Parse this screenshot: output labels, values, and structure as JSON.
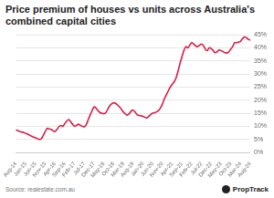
{
  "chart_data": {
    "type": "line",
    "title": "Price premium of houses vs units across Australia's combined capital cities",
    "source": "Source: realestate.com.au",
    "logo": "PropTrack",
    "color": "#d81e47",
    "grid": true,
    "categories": [
      "Aug-14",
      null,
      null,
      null,
      null,
      "Jan-15",
      null,
      null,
      null,
      null,
      "Jun-15",
      null,
      null,
      null,
      null,
      "Nov-15",
      null,
      null,
      null,
      null,
      "Apr-16",
      null,
      null,
      null,
      null,
      "Sep-16",
      null,
      null,
      null,
      null,
      "Feb-17",
      null,
      null,
      null,
      null,
      "Jul-17",
      null,
      null,
      null,
      null,
      "Dec-17",
      null,
      null,
      null,
      null,
      "May-18",
      null,
      null,
      null,
      null,
      "Oct-18",
      null,
      null,
      null,
      null,
      "Mar-19",
      null,
      null,
      null,
      null,
      "Aug-19",
      null,
      null,
      null,
      null,
      "Jan-20",
      null,
      null,
      null,
      null,
      "Jun-20",
      null,
      null,
      null,
      null,
      "Nov-20",
      null,
      null,
      null,
      null,
      "Apr-21",
      null,
      null,
      null,
      null,
      "Sep-21",
      null,
      null,
      null,
      null,
      "Feb-22",
      null,
      null,
      null,
      null,
      "Jul-22",
      null,
      null,
      null,
      null,
      "Dec-22",
      null,
      null,
      null,
      null,
      "May-23",
      null,
      null,
      null,
      null,
      "Oct-23",
      null,
      null,
      null,
      null,
      "Mar-24",
      null,
      null,
      null,
      null,
      "Aug-24"
    ],
    "values": [
      8.6,
      8.3,
      8.0,
      7.8,
      7.6,
      7.3,
      7.0,
      6.6,
      6.2,
      5.9,
      5.6,
      5.3,
      5.0,
      5.2,
      6.5,
      8.0,
      9.2,
      9.0,
      8.8,
      8.3,
      8.0,
      8.8,
      9.8,
      10.3,
      10.0,
      11.0,
      12.0,
      12.6,
      11.8,
      10.8,
      10.0,
      10.3,
      10.8,
      10.4,
      10.0,
      9.8,
      10.6,
      12.5,
      14.3,
      16.0,
      17.4,
      17.0,
      16.0,
      15.3,
      15.0,
      14.8,
      15.2,
      16.5,
      17.8,
      18.6,
      19.0,
      18.8,
      18.2,
      17.5,
      16.5,
      15.5,
      14.8,
      14.3,
      14.8,
      15.8,
      16.2,
      15.5,
      14.5,
      14.2,
      14.0,
      13.8,
      13.5,
      13.2,
      13.8,
      14.5,
      15.0,
      15.2,
      15.5,
      16.0,
      17.0,
      18.5,
      20.5,
      22.0,
      23.5,
      25.0,
      26.0,
      27.0,
      28.5,
      31.0,
      34.0,
      36.5,
      39.0,
      40.5,
      40.0,
      41.0,
      42.0,
      41.5,
      40.8,
      40.5,
      41.0,
      41.5,
      41.0,
      39.5,
      39.0,
      40.0,
      39.8,
      39.0,
      38.2,
      38.5,
      39.2,
      39.0,
      38.6,
      38.2,
      38.0,
      38.5,
      39.5,
      40.5,
      42.0,
      42.0,
      42.2,
      42.5,
      43.5,
      44.2,
      44.0,
      43.3,
      43.0
    ],
    "ylim": [
      0,
      45
    ],
    "yticks": [
      {
        "value": 0,
        "label": "0%"
      },
      {
        "value": 5,
        "label": "5%"
      },
      {
        "value": 10,
        "label": "10%"
      },
      {
        "value": 15,
        "label": "15%"
      },
      {
        "value": 20,
        "label": "20%"
      },
      {
        "value": 25,
        "label": "25%"
      },
      {
        "value": 30,
        "label": "30%"
      },
      {
        "value": 35,
        "label": "35%"
      },
      {
        "value": 40,
        "label": "40%"
      },
      {
        "value": 45,
        "label": "45%"
      }
    ]
  }
}
